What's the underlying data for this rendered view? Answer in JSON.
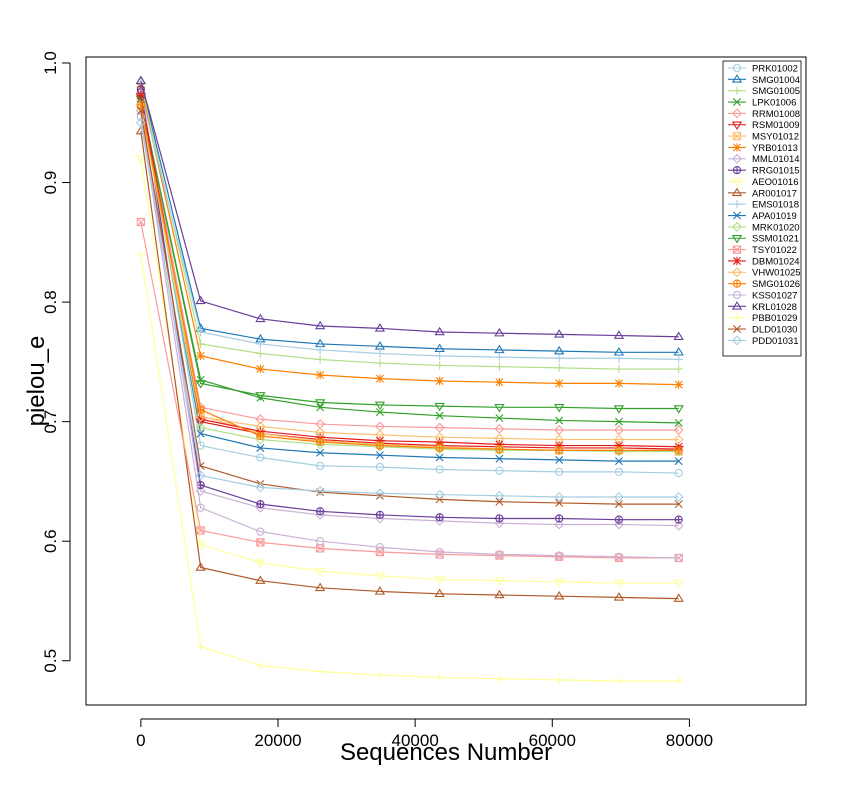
{
  "chart_data": {
    "type": "line",
    "xlabel": "Sequences Number",
    "ylabel": "pielou_e",
    "xlim": [
      -8000,
      97000
    ],
    "ylim": [
      0.463,
      1.005
    ],
    "x_ticks": [
      0,
      20000,
      40000,
      60000,
      80000
    ],
    "y_ticks": [
      0.5,
      0.6,
      0.7,
      0.8,
      0.9,
      1.0
    ],
    "y_tick_labels": [
      "0.5",
      "0.6",
      "0.7",
      "0.8",
      "0.9",
      "1.0"
    ],
    "grid": false,
    "legend_position": "top-right",
    "x": [
      0,
      8715,
      17430,
      26145,
      34860,
      43575,
      52290,
      61005,
      69720,
      78435
    ],
    "series": [
      {
        "name": "PRK01002",
        "color": "#A6CEE3",
        "marker": "circle",
        "values": [
          0.975,
          0.68,
          0.67,
          0.663,
          0.662,
          0.66,
          0.659,
          0.658,
          0.658,
          0.657
        ]
      },
      {
        "name": "SMG01004",
        "color": "#1F78B4",
        "marker": "triangle",
        "values": [
          0.985,
          0.778,
          0.769,
          0.765,
          0.763,
          0.761,
          0.76,
          0.759,
          0.758,
          0.758
        ]
      },
      {
        "name": "SMG01005",
        "color": "#B2DF8A",
        "marker": "plus",
        "values": [
          0.983,
          0.765,
          0.757,
          0.752,
          0.749,
          0.747,
          0.746,
          0.745,
          0.744,
          0.744
        ]
      },
      {
        "name": "LPK01006",
        "color": "#33A02C",
        "marker": "x",
        "values": [
          0.97,
          0.735,
          0.72,
          0.712,
          0.708,
          0.705,
          0.703,
          0.701,
          0.7,
          0.699
        ]
      },
      {
        "name": "RRM01008",
        "color": "#FB9A99",
        "marker": "diamond",
        "values": [
          0.975,
          0.712,
          0.702,
          0.698,
          0.696,
          0.695,
          0.694,
          0.693,
          0.693,
          0.693
        ]
      },
      {
        "name": "RSM01009",
        "color": "#E31A1C",
        "marker": "triangle-down",
        "values": [
          0.972,
          0.7,
          0.69,
          0.685,
          0.682,
          0.68,
          0.679,
          0.678,
          0.678,
          0.677
        ]
      },
      {
        "name": "MSY01012",
        "color": "#FDBF6F",
        "marker": "square-x",
        "values": [
          0.968,
          0.705,
          0.69,
          0.684,
          0.681,
          0.679,
          0.677,
          0.676,
          0.676,
          0.675
        ]
      },
      {
        "name": "YRB01013",
        "color": "#FF7F00",
        "marker": "asterisk",
        "values": [
          0.98,
          0.755,
          0.744,
          0.739,
          0.736,
          0.734,
          0.733,
          0.732,
          0.732,
          0.731
        ]
      },
      {
        "name": "MML01014",
        "color": "#CAB2D6",
        "marker": "diamond",
        "values": [
          0.96,
          0.642,
          0.628,
          0.622,
          0.619,
          0.617,
          0.615,
          0.614,
          0.614,
          0.613
        ]
      },
      {
        "name": "RRG01015",
        "color": "#6A3D9A",
        "marker": "filled-circle",
        "values": [
          0.978,
          0.647,
          0.631,
          0.625,
          0.622,
          0.62,
          0.619,
          0.619,
          0.618,
          0.618
        ]
      },
      {
        "name": "AEO01016",
        "color": "#FFFF99",
        "marker": "triangle-down",
        "values": [
          0.92,
          0.597,
          0.582,
          0.575,
          0.571,
          0.568,
          0.567,
          0.566,
          0.565,
          0.565
        ]
      },
      {
        "name": "AR001017",
        "color": "#B15928",
        "marker": "triangle",
        "values": [
          0.943,
          0.578,
          0.567,
          0.561,
          0.558,
          0.556,
          0.555,
          0.554,
          0.553,
          0.552
        ]
      },
      {
        "name": "EMS01018",
        "color": "#A6CEE3",
        "marker": "plus",
        "values": [
          0.975,
          0.775,
          0.765,
          0.76,
          0.757,
          0.755,
          0.754,
          0.753,
          0.753,
          0.752
        ]
      },
      {
        "name": "APA01019",
        "color": "#1F78B4",
        "marker": "x",
        "values": [
          0.97,
          0.69,
          0.678,
          0.674,
          0.672,
          0.67,
          0.669,
          0.668,
          0.667,
          0.667
        ]
      },
      {
        "name": "MRK01020",
        "color": "#B2DF8A",
        "marker": "diamond",
        "values": [
          0.965,
          0.695,
          0.685,
          0.681,
          0.679,
          0.677,
          0.676,
          0.676,
          0.675,
          0.675
        ]
      },
      {
        "name": "SSM01021",
        "color": "#33A02C",
        "marker": "triangle-down",
        "values": [
          0.97,
          0.732,
          0.722,
          0.716,
          0.714,
          0.713,
          0.712,
          0.712,
          0.711,
          0.711
        ]
      },
      {
        "name": "TSY01022",
        "color": "#FB9A99",
        "marker": "square-x",
        "values": [
          0.867,
          0.609,
          0.599,
          0.594,
          0.591,
          0.589,
          0.588,
          0.587,
          0.586,
          0.586
        ]
      },
      {
        "name": "DBM01024",
        "color": "#E31A1C",
        "marker": "asterisk",
        "values": [
          0.973,
          0.702,
          0.692,
          0.687,
          0.684,
          0.683,
          0.681,
          0.68,
          0.68,
          0.679
        ]
      },
      {
        "name": "VHW01025",
        "color": "#FDBF6F",
        "marker": "diamond",
        "values": [
          0.963,
          0.704,
          0.696,
          0.691,
          0.689,
          0.687,
          0.686,
          0.685,
          0.685,
          0.685
        ]
      },
      {
        "name": "SMG01026",
        "color": "#FF7F00",
        "marker": "filled-circle",
        "values": [
          0.965,
          0.71,
          0.688,
          0.683,
          0.68,
          0.678,
          0.677,
          0.676,
          0.676,
          0.676
        ]
      },
      {
        "name": "KSS01027",
        "color": "#CAB2D6",
        "marker": "circle",
        "values": [
          0.955,
          0.628,
          0.608,
          0.6,
          0.595,
          0.591,
          0.589,
          0.588,
          0.587,
          0.586
        ]
      },
      {
        "name": "KRL01028",
        "color": "#6A3D9A",
        "marker": "triangle",
        "values": [
          0.985,
          0.801,
          0.786,
          0.78,
          0.778,
          0.775,
          0.774,
          0.773,
          0.772,
          0.771
        ]
      },
      {
        "name": "PBB01029",
        "color": "#FFFF99",
        "marker": "plus",
        "values": [
          0.84,
          0.512,
          0.496,
          0.491,
          0.488,
          0.486,
          0.485,
          0.484,
          0.483,
          0.483
        ]
      },
      {
        "name": "DLD01030",
        "color": "#B15928",
        "marker": "x",
        "values": [
          0.96,
          0.663,
          0.648,
          0.641,
          0.638,
          0.635,
          0.633,
          0.632,
          0.631,
          0.631
        ]
      },
      {
        "name": "PDD01031",
        "color": "#A6CEE3",
        "marker": "diamond",
        "values": [
          0.95,
          0.655,
          0.645,
          0.642,
          0.64,
          0.639,
          0.638,
          0.637,
          0.637,
          0.637
        ]
      }
    ]
  }
}
